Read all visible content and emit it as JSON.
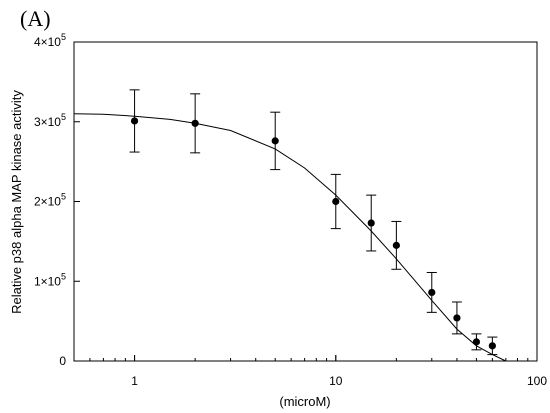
{
  "panel_label": "(A)",
  "chart_data": {
    "type": "scatter",
    "title": "",
    "xlabel": "(microM)",
    "ylabel": "Relative p38 alpha MAP kinase activity",
    "x_scale": "log",
    "xlim": [
      0.5,
      100
    ],
    "ylim": [
      0,
      400000
    ],
    "x_ticks": [
      {
        "value": 1,
        "label": "1"
      },
      {
        "value": 10,
        "label": "10"
      },
      {
        "value": 100,
        "label": "100"
      }
    ],
    "y_ticks": [
      {
        "value": 0,
        "base": "0",
        "exp": ""
      },
      {
        "value": 100000,
        "base": "1×10",
        "exp": "5"
      },
      {
        "value": 200000,
        "base": "2×10",
        "exp": "5"
      },
      {
        "value": 300000,
        "base": "3×10",
        "exp": "5"
      },
      {
        "value": 400000,
        "base": "4×10",
        "exp": "5"
      }
    ],
    "grid": false,
    "legend": "none",
    "series": [
      {
        "points": [
          {
            "x": 1,
            "y": 301000,
            "err": 39000
          },
          {
            "x": 2,
            "y": 298000,
            "err": 37000
          },
          {
            "x": 5,
            "y": 276000,
            "err": 36000
          },
          {
            "x": 10,
            "y": 200000,
            "err": 34000
          },
          {
            "x": 15,
            "y": 173000,
            "err": 35000
          },
          {
            "x": 20,
            "y": 145000,
            "err": 30000
          },
          {
            "x": 30,
            "y": 86000,
            "err": 25000
          },
          {
            "x": 40,
            "y": 54000,
            "err": 20000
          },
          {
            "x": 50,
            "y": 24000,
            "err": 10000
          },
          {
            "x": 60,
            "y": 19000,
            "err": 11000
          }
        ]
      }
    ],
    "fit_curve": [
      {
        "x": 0.5,
        "y": 310000
      },
      {
        "x": 0.7,
        "y": 309500
      },
      {
        "x": 1,
        "y": 307000
      },
      {
        "x": 1.5,
        "y": 303000
      },
      {
        "x": 2,
        "y": 298000
      },
      {
        "x": 3,
        "y": 289000
      },
      {
        "x": 5,
        "y": 266000
      },
      {
        "x": 7,
        "y": 242000
      },
      {
        "x": 10,
        "y": 208000
      },
      {
        "x": 15,
        "y": 163000
      },
      {
        "x": 20,
        "y": 128000
      },
      {
        "x": 30,
        "y": 76000
      },
      {
        "x": 40,
        "y": 40000
      },
      {
        "x": 50,
        "y": 19000
      },
      {
        "x": 60,
        "y": 8000
      },
      {
        "x": 70,
        "y": 0
      }
    ]
  }
}
